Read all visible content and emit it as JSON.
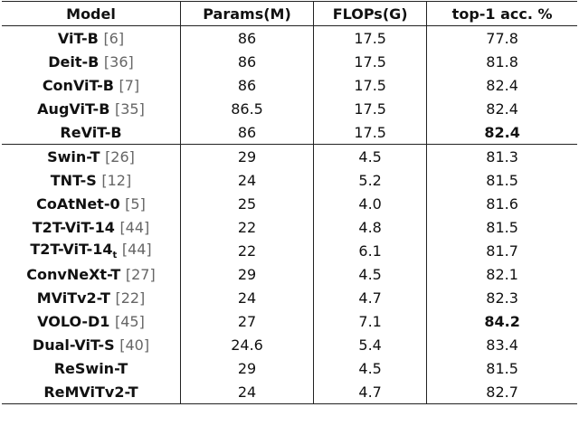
{
  "table": {
    "header": [
      "Model",
      "Params(M)",
      "FLOPs(G)",
      "top-1 acc. %"
    ],
    "groups": [
      [
        {
          "model": "ViT-B",
          "ref": "[6]",
          "params": "86",
          "flops": "17.5",
          "acc": "77.8"
        },
        {
          "model": "Deit-B",
          "ref": "[36]",
          "params": "86",
          "flops": "17.5",
          "acc": "81.8"
        },
        {
          "model": "ConViT-B",
          "ref": "[7]",
          "params": "86",
          "flops": "17.5",
          "acc": "82.4"
        },
        {
          "model": "AugViT-B",
          "ref": "[35]",
          "params": "86.5",
          "flops": "17.5",
          "acc": "82.4"
        },
        {
          "model": "ReViT-B",
          "params": "86",
          "flops": "17.5",
          "acc": "82.4",
          "bold_acc": true
        }
      ],
      [
        {
          "model": "Swin-T",
          "ref": "[26]",
          "params": "29",
          "flops": "4.5",
          "acc": "81.3"
        },
        {
          "model": "TNT-S",
          "ref": "[12]",
          "params": "24",
          "flops": "5.2",
          "acc": "81.5"
        },
        {
          "model": "CoAtNet-0",
          "ref": "[5]",
          "params": "25",
          "flops": "4.0",
          "acc": "81.6"
        },
        {
          "model": "T2T-ViT-14",
          "ref": "[44]",
          "params": "22",
          "flops": "4.8",
          "acc": "81.5"
        },
        {
          "model": "T2T-ViT-14",
          "sub": "t",
          "ref": "[44]",
          "params": "22",
          "flops": "6.1",
          "acc": "81.7"
        },
        {
          "model": "ConvNeXt-T",
          "ref": "[27]",
          "params": "29",
          "flops": "4.5",
          "acc": "82.1"
        },
        {
          "model": "MViTv2-T",
          "ref": "[22]",
          "params": "24",
          "flops": "4.7",
          "acc": "82.3"
        },
        {
          "model": "VOLO-D1",
          "ref": "[45]",
          "params": "27",
          "flops": "7.1",
          "acc": "84.2",
          "bold_acc": true
        },
        {
          "model": "Dual-ViT-S",
          "ref": "[40]",
          "params": "24.6",
          "flops": "5.4",
          "acc": "83.4"
        },
        {
          "model": "ReSwin-T",
          "params": "29",
          "flops": "4.5",
          "acc": "81.5"
        },
        {
          "model": "ReMViTv2-T",
          "params": "24",
          "flops": "4.7",
          "acc": "82.7"
        }
      ]
    ]
  }
}
